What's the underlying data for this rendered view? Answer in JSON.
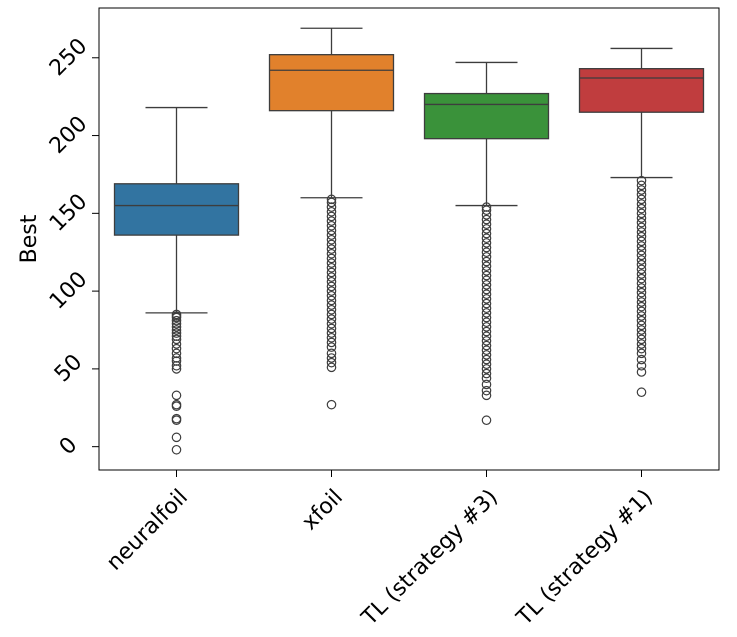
{
  "chart_data": {
    "type": "box",
    "title": "",
    "xlabel": "",
    "ylabel": "Best",
    "ylim": [
      -15,
      282
    ],
    "yticks": [
      0,
      50,
      100,
      150,
      200,
      250
    ],
    "categories": [
      "neuralfoil",
      "xfoil",
      "TL (strategy #3)",
      "TL (strategy #1)"
    ],
    "boxes": [
      {
        "name": "neuralfoil",
        "color": "#3274a1",
        "whisker_low": 86,
        "q1": 136,
        "median": 155,
        "q3": 169,
        "whisker_high": 218,
        "outliers": [
          -2,
          6,
          17,
          18,
          26,
          27,
          33,
          50,
          52,
          55,
          57,
          60,
          63,
          66,
          69,
          71,
          73,
          75,
          77,
          79,
          81,
          83,
          84,
          85
        ]
      },
      {
        "name": "xfoil",
        "color": "#e1812c",
        "whisker_low": 160,
        "q1": 216,
        "median": 242,
        "q3": 252,
        "whisker_high": 269,
        "outliers": [
          27,
          51,
          54,
          57,
          60,
          64,
          67,
          70,
          73,
          76,
          79,
          82,
          85,
          88,
          91,
          94,
          97,
          100,
          103,
          106,
          109,
          112,
          115,
          118,
          121,
          124,
          127,
          130,
          133,
          136,
          139,
          142,
          145,
          148,
          151,
          154,
          157,
          159
        ]
      },
      {
        "name": "TL (strategy #3)",
        "color": "#3a923a",
        "whisker_low": 155,
        "q1": 198,
        "median": 220,
        "q3": 227,
        "whisker_high": 247,
        "outliers": [
          17,
          33,
          36,
          40,
          44,
          47,
          50,
          53,
          56,
          59,
          62,
          65,
          68,
          71,
          74,
          77,
          80,
          83,
          86,
          89,
          92,
          95,
          98,
          101,
          104,
          107,
          110,
          113,
          116,
          119,
          122,
          125,
          128,
          131,
          134,
          137,
          140,
          143,
          146,
          149,
          152,
          154
        ]
      },
      {
        "name": "TL (strategy #1)",
        "color": "#c03d3e",
        "whisker_low": 173,
        "q1": 215,
        "median": 237,
        "q3": 243,
        "whisker_high": 256,
        "outliers": [
          35,
          48,
          52,
          56,
          60,
          63,
          66,
          69,
          72,
          75,
          78,
          81,
          84,
          87,
          90,
          93,
          96,
          99,
          102,
          105,
          108,
          111,
          114,
          117,
          120,
          123,
          126,
          129,
          132,
          135,
          138,
          141,
          144,
          147,
          150,
          153,
          156,
          159,
          162,
          165,
          168,
          171
        ]
      }
    ]
  }
}
